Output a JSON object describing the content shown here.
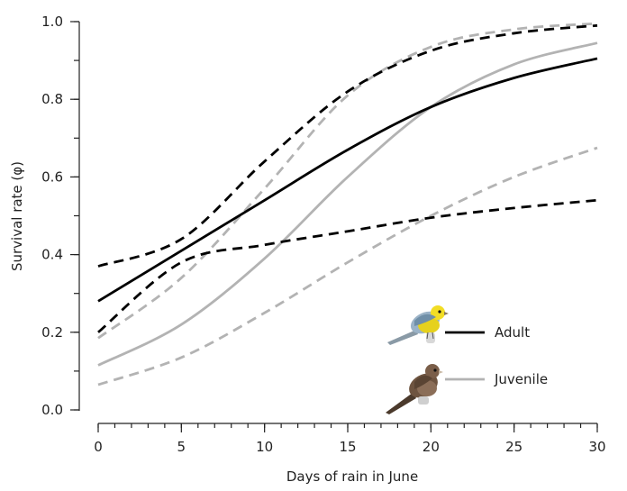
{
  "chart_data": {
    "type": "line",
    "xlabel": "Days of rain in June",
    "ylabel": "Survival rate (φ)",
    "xlim": [
      -1.5,
      31.5
    ],
    "ylim": [
      -0.02,
      1.03
    ],
    "x_ticks": [
      0,
      5,
      10,
      15,
      20,
      25,
      30
    ],
    "x_tick_labels": [
      "0",
      "5",
      "10",
      "15",
      "20",
      "25",
      "30"
    ],
    "x_minor_step": 1,
    "y_ticks": [
      0.0,
      0.2,
      0.4,
      0.6,
      0.8,
      1.0
    ],
    "y_tick_labels": [
      "0.0",
      "0.2",
      "0.4",
      "0.6",
      "0.8",
      "1.0"
    ],
    "y_minor_step": 0.1,
    "grid": false,
    "legend": [
      {
        "label": "Adult",
        "color": "#000000",
        "icon": "adult-bird-icon"
      },
      {
        "label": "Juvenile",
        "color": "#b3b3b3",
        "icon": "juvenile-bird-icon"
      }
    ],
    "series": [
      {
        "name": "Adult estimate",
        "group": "Adult",
        "style": "solid",
        "color": "#000000",
        "x": [
          0,
          5,
          10,
          15,
          20,
          25,
          30
        ],
        "y": [
          0.28,
          0.41,
          0.54,
          0.67,
          0.78,
          0.855,
          0.905
        ]
      },
      {
        "name": "Adult upper CI",
        "group": "Adult",
        "style": "dashed",
        "color": "#000000",
        "x": [
          0,
          5,
          10,
          15,
          20,
          25,
          30
        ],
        "y": [
          0.37,
          0.44,
          0.64,
          0.82,
          0.925,
          0.97,
          0.99
        ]
      },
      {
        "name": "Adult lower CI",
        "group": "Adult",
        "style": "dashed",
        "color": "#000000",
        "x": [
          0,
          5,
          10,
          15,
          20,
          25,
          30
        ],
        "y": [
          0.2,
          0.38,
          0.425,
          0.46,
          0.495,
          0.52,
          0.54
        ]
      },
      {
        "name": "Juvenile estimate",
        "group": "Juvenile",
        "style": "solid",
        "color": "#b3b3b3",
        "x": [
          0,
          5,
          10,
          15,
          20,
          25,
          30
        ],
        "y": [
          0.115,
          0.22,
          0.39,
          0.6,
          0.78,
          0.89,
          0.945
        ]
      },
      {
        "name": "Juvenile upper CI",
        "group": "Juvenile",
        "style": "dashed",
        "color": "#b3b3b3",
        "x": [
          0,
          5,
          10,
          15,
          20,
          25,
          30
        ],
        "y": [
          0.185,
          0.34,
          0.57,
          0.81,
          0.935,
          0.98,
          0.995
        ]
      },
      {
        "name": "Juvenile lower CI",
        "group": "Juvenile",
        "style": "dashed",
        "color": "#b3b3b3",
        "x": [
          0,
          5,
          10,
          15,
          20,
          25,
          30
        ],
        "y": [
          0.065,
          0.135,
          0.25,
          0.38,
          0.5,
          0.6,
          0.675
        ]
      }
    ]
  }
}
